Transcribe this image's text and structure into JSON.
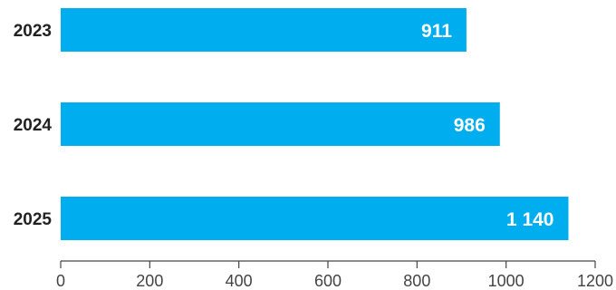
{
  "chart_data": {
    "type": "bar",
    "orientation": "horizontal",
    "categories": [
      "2023",
      "2024",
      "2025"
    ],
    "values": [
      911,
      986,
      1140
    ],
    "value_labels": [
      "911",
      "986",
      "1 140"
    ],
    "bar_color": "#00AEEF",
    "xlim": [
      0,
      1200
    ],
    "xticks": [
      0,
      200,
      400,
      600,
      800,
      1000,
      1200
    ],
    "xtick_labels": [
      "0",
      "200",
      "400",
      "600",
      "800",
      "1000",
      "1200"
    ],
    "grid": false,
    "legend": "none"
  }
}
